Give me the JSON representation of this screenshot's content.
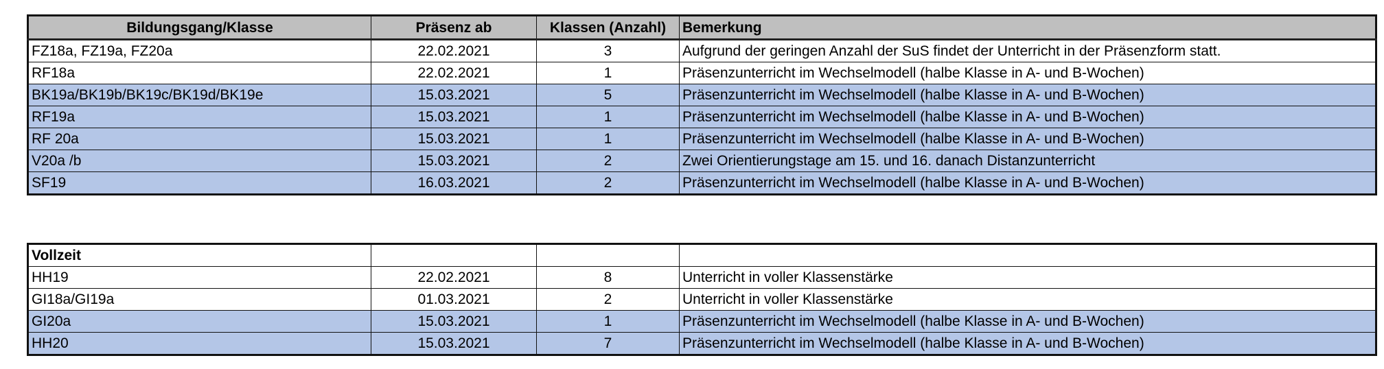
{
  "colors": {
    "header_bg": "#bfbfbf",
    "highlight_bg": "#b4c6e7"
  },
  "table1": {
    "headers": [
      "Bildungsgang/Klasse",
      "Präsenz ab",
      "Klassen (Anzahl)",
      "Bemerkung"
    ],
    "rows": [
      {
        "klasse": "FZ18a, FZ19a, FZ20a",
        "datum": "22.02.2021",
        "anzahl": "3",
        "bemerkung": "Aufgrund der geringen Anzahl der SuS findet der Unterricht in der Präsenzform statt.",
        "highlight": false
      },
      {
        "klasse": "RF18a",
        "datum": "22.02.2021",
        "anzahl": "1",
        "bemerkung": "Präsenzunterricht im Wechselmodell (halbe Klasse in A- und B-Wochen)",
        "highlight": false
      },
      {
        "klasse": "BK19a/BK19b/BK19c/BK19d/BK19e",
        "datum": "15.03.2021",
        "anzahl": "5",
        "bemerkung": "Präsenzunterricht im Wechselmodell (halbe Klasse in A- und B-Wochen)",
        "highlight": true
      },
      {
        "klasse": "RF19a",
        "datum": "15.03.2021",
        "anzahl": "1",
        "bemerkung": "Präsenzunterricht im Wechselmodell (halbe Klasse in A- und B-Wochen)",
        "highlight": true
      },
      {
        "klasse": "RF 20a",
        "datum": "15.03.2021",
        "anzahl": "1",
        "bemerkung": "Präsenzunterricht im Wechselmodell (halbe Klasse in A- und B-Wochen)",
        "highlight": true
      },
      {
        "klasse": "V20a /b",
        "datum": "15.03.2021",
        "anzahl": "2",
        "bemerkung": "Zwei Orientierungstage am 15. und 16. danach Distanzunterricht",
        "highlight": true
      },
      {
        "klasse": "SF19",
        "datum": "16.03.2021",
        "anzahl": "2",
        "bemerkung": "Präsenzunterricht im Wechselmodell (halbe Klasse in A- und B-Wochen)",
        "highlight": true
      }
    ]
  },
  "table2": {
    "section_title": "Vollzeit",
    "rows": [
      {
        "klasse": "HH19",
        "datum": "22.02.2021",
        "anzahl": "8",
        "bemerkung": "Unterricht in voller Klassenstärke",
        "highlight": false
      },
      {
        "klasse": "GI18a/GI19a",
        "datum": "01.03.2021",
        "anzahl": "2",
        "bemerkung": "Unterricht in voller Klassenstärke",
        "highlight": false
      },
      {
        "klasse": "GI20a",
        "datum": "15.03.2021",
        "anzahl": "1",
        "bemerkung": "Präsenzunterricht im Wechselmodell (halbe Klasse in A- und B-Wochen)",
        "highlight": true
      },
      {
        "klasse": "HH20",
        "datum": "15.03.2021",
        "anzahl": "7",
        "bemerkung": "Präsenzunterricht im Wechselmodell (halbe Klasse in A- und B-Wochen)",
        "highlight": true
      }
    ]
  }
}
